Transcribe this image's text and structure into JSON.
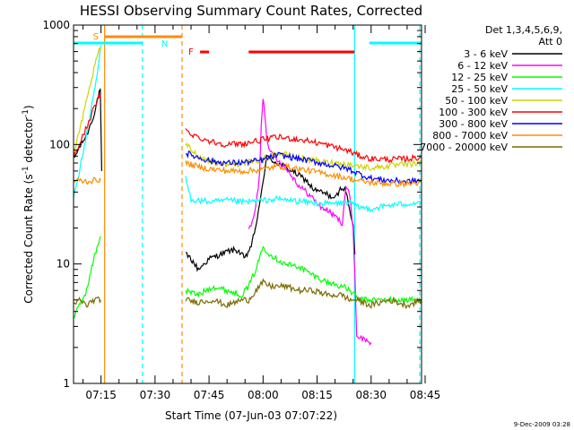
{
  "chart_data": {
    "type": "line",
    "title": "HESSI Observing Summary Count Rates, Corrected",
    "xlabel": "Start Time (07-Jun-03 07:07:22)",
    "ylabel_main": "Corrected Count Rate (s",
    "ylabel_sup1": "-1",
    "ylabel_mid": " detector",
    "ylabel_sup2": "-1",
    "ylabel_end": ")",
    "yscale": "log",
    "ylim": [
      1,
      1000
    ],
    "xlim_minutes": [
      7.37,
      104.0
    ],
    "x_ticks": [
      {
        "label": "07:15",
        "minute": 15
      },
      {
        "label": "07:30",
        "minute": 30
      },
      {
        "label": "07:45",
        "minute": 45
      },
      {
        "label": "08:00",
        "minute": 60
      },
      {
        "label": "08:15",
        "minute": 75
      },
      {
        "label": "08:30",
        "minute": 90
      },
      {
        "label": "08:45",
        "minute": 105
      }
    ],
    "y_ticks": [
      {
        "label": "1",
        "value": 1
      },
      {
        "label": "10",
        "value": 10
      },
      {
        "label": "100",
        "value": 100
      },
      {
        "label": "1000",
        "value": 1000
      }
    ],
    "legend_header": [
      "Det 1,3,4,5,6,9,",
      "Att 0"
    ],
    "legend_placement": "right",
    "series": [
      {
        "name": "3 - 6 keV",
        "color": "#000000",
        "x": [
          7.4,
          9,
          11,
          12.5,
          13.5,
          14,
          14.5,
          14.8,
          15.2,
          38.5,
          40,
          42,
          45,
          48,
          51,
          53,
          55,
          57,
          59,
          60,
          61,
          62,
          64,
          66,
          68,
          70,
          72,
          74,
          76,
          78,
          80,
          82,
          83,
          84,
          85,
          85.5
        ],
        "y": [
          75,
          95,
          120,
          160,
          200,
          240,
          270,
          280,
          60,
          12,
          11,
          9,
          11,
          12,
          13,
          13,
          11,
          15,
          30,
          50,
          80,
          75,
          70,
          65,
          60,
          55,
          50,
          42,
          40,
          38,
          35,
          45,
          40,
          30,
          20,
          12
        ]
      },
      {
        "name": "6 - 12 keV",
        "color": "#ff00ff",
        "x": [
          56,
          57,
          58,
          59,
          59.5,
          60,
          60.5,
          61,
          62,
          64,
          66,
          68,
          70,
          72,
          74,
          76,
          78,
          80,
          82,
          83,
          84,
          85,
          85.5,
          86,
          90
        ],
        "y": [
          20,
          22,
          30,
          55,
          150,
          250,
          180,
          120,
          85,
          75,
          65,
          55,
          45,
          40,
          35,
          30,
          28,
          25,
          22,
          45,
          38,
          20,
          8,
          2.5,
          2.2
        ]
      },
      {
        "name": "12 - 25 keV",
        "color": "#00ff00",
        "x": [
          7.4,
          9,
          11,
          13,
          14.5,
          14.9,
          38.5,
          42,
          46,
          50,
          54,
          56,
          58,
          60,
          62,
          66,
          70,
          74,
          78,
          82,
          84,
          85.4,
          86.5,
          95,
          104
        ],
        "y": [
          3.5,
          4.5,
          6,
          11,
          16,
          17,
          6,
          5.5,
          6.5,
          6,
          5.5,
          6.5,
          9,
          14,
          12,
          10,
          9.5,
          8,
          7,
          6.5,
          6,
          5.5,
          5,
          5,
          5
        ]
      },
      {
        "name": "25 - 50 keV",
        "color": "#00ffff",
        "x": [
          7.4,
          9,
          11,
          13,
          14.5,
          14.9,
          38.5,
          40,
          42,
          46,
          50,
          55,
          60,
          64,
          68,
          72,
          76,
          80,
          84,
          86,
          90,
          95,
          100,
          104
        ],
        "y": [
          38,
          60,
          120,
          260,
          500,
          680,
          52,
          35,
          34,
          33,
          34,
          33,
          34,
          35,
          34,
          33,
          32,
          32,
          33,
          30,
          29,
          31,
          32,
          33
        ]
      },
      {
        "name": "50 - 100 keV",
        "color": "#ccd400",
        "x": [
          7.4,
          9,
          11,
          13,
          14.5,
          14.9,
          38.5,
          42,
          46,
          50,
          55,
          60,
          64,
          68,
          72,
          76,
          80,
          84,
          86,
          90,
          95,
          100,
          104
        ],
        "y": [
          80,
          130,
          230,
          420,
          620,
          640,
          100,
          80,
          72,
          68,
          70,
          75,
          85,
          80,
          75,
          72,
          70,
          68,
          66,
          64,
          66,
          68,
          70
        ]
      },
      {
        "name": "100 - 300 keV",
        "color": "#ff0000",
        "x": [
          7.4,
          9,
          11,
          13,
          14.5,
          14.9,
          38.5,
          42,
          46,
          50,
          55,
          60,
          64,
          68,
          72,
          76,
          80,
          84,
          86,
          90,
          95,
          100,
          104
        ],
        "y": [
          80,
          100,
          140,
          200,
          250,
          260,
          130,
          115,
          105,
          100,
          102,
          110,
          115,
          112,
          108,
          102,
          95,
          88,
          82,
          76,
          75,
          76,
          78
        ]
      },
      {
        "name": "300 - 800 keV",
        "color": "#0000ff",
        "x": [
          38.5,
          42,
          46,
          50,
          55,
          60,
          64,
          68,
          72,
          76,
          80,
          84,
          86,
          90,
          95,
          100,
          104
        ],
        "y": [
          85,
          78,
          72,
          70,
          71,
          74,
          82,
          78,
          74,
          70,
          66,
          62,
          58,
          52,
          50,
          49,
          50
        ]
      },
      {
        "name": "800 - 7000 keV",
        "color": "#ff8c00",
        "x": [
          7.4,
          9,
          11,
          13,
          14.5,
          14.9,
          38.5,
          42,
          46,
          50,
          55,
          60,
          64,
          68,
          72,
          76,
          80,
          84,
          86,
          90,
          95,
          100,
          104
        ],
        "y": [
          50,
          50,
          49,
          50,
          51,
          50,
          70,
          65,
          62,
          60,
          60,
          62,
          66,
          64,
          61,
          58,
          55,
          52,
          50,
          48,
          47,
          47,
          48
        ]
      },
      {
        "name": "7000 - 20000 keV",
        "color": "#7a6a00",
        "x": [
          7.4,
          9,
          11,
          13,
          14.5,
          14.9,
          38.5,
          42,
          46,
          50,
          54,
          56,
          58,
          60,
          62,
          66,
          70,
          74,
          78,
          82,
          84,
          86,
          90,
          95,
          100,
          104
        ],
        "y": [
          4.5,
          5,
          4.5,
          5,
          5,
          5,
          5,
          4.8,
          5,
          4.5,
          5,
          5,
          6,
          7,
          6.5,
          6.5,
          6,
          6,
          5.5,
          5.5,
          5,
          5,
          4.5,
          5,
          4.5,
          5
        ]
      }
    ],
    "annotations": [
      {
        "label": "S",
        "minute": 13.5,
        "color": "#ff8c00"
      },
      {
        "label": "N",
        "minute": 32.5,
        "color": "#00ffff"
      },
      {
        "label": "F",
        "minute": 40,
        "color": "#ff0000"
      }
    ],
    "status_bars": [
      {
        "start": 7.4,
        "end": 26.5,
        "color": "#00ffff"
      },
      {
        "start": 16,
        "end": 37.5,
        "color": "#ff8c00"
      },
      {
        "start": 42.5,
        "end": 45,
        "color": "#ff0000"
      },
      {
        "start": 56,
        "end": 85.4,
        "color": "#ff0000"
      },
      {
        "start": 89.5,
        "end": 104,
        "color": "#00ffff"
      }
    ],
    "vertical_lines": [
      {
        "minute": 16,
        "color": "#ff8c00",
        "dashed": false
      },
      {
        "minute": 26.5,
        "color": "#00ffff",
        "dashed": true
      },
      {
        "minute": 37.5,
        "color": "#ff8c00",
        "dashed": true
      },
      {
        "minute": 85.4,
        "color": "#00ffff",
        "dashed": false
      },
      {
        "minute": 103.5,
        "color": "#00ffff",
        "dashed": true
      }
    ],
    "timestamp": "9-Dec-2009 03:28"
  }
}
